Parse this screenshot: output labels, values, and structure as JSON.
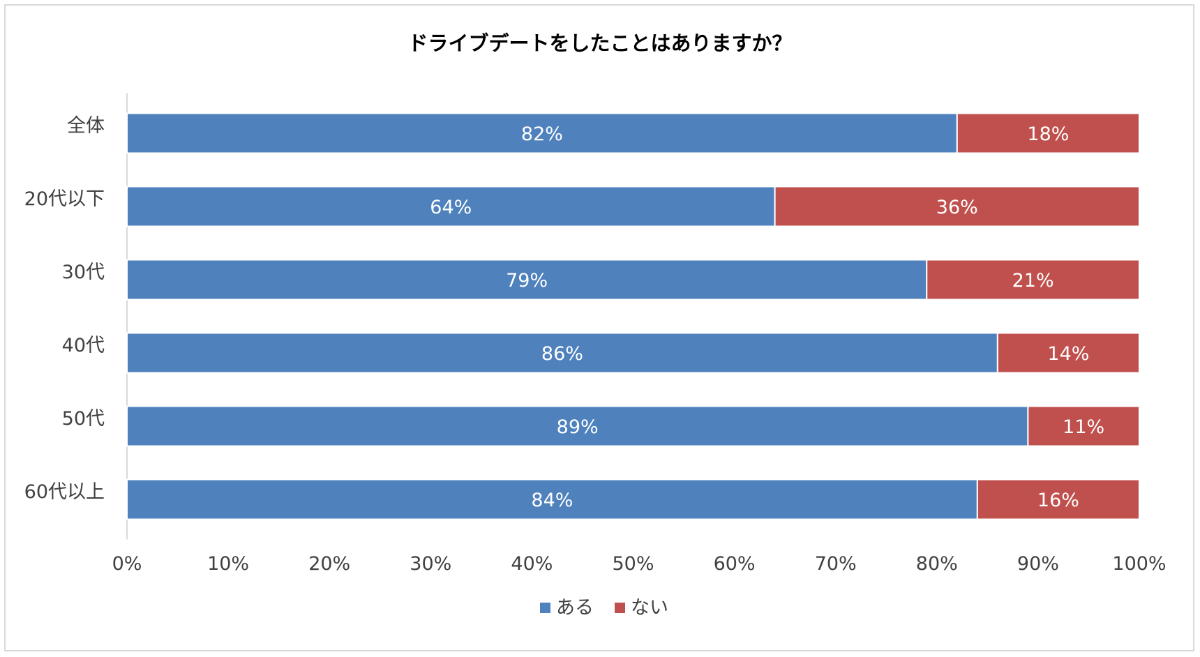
{
  "chart_data": {
    "type": "bar",
    "orientation": "horizontal",
    "stacked": true,
    "title": "ドライブデートをしたことはありますか？",
    "categories": [
      "全体",
      "20代以下",
      "30代",
      "40代",
      "50代",
      "60代以上"
    ],
    "series": [
      {
        "name": "ある",
        "color": "#4f81bd",
        "values": [
          82,
          64,
          79,
          86,
          89,
          84
        ],
        "labels": [
          "82%",
          "64%",
          "79%",
          "86%",
          "89%",
          "84%"
        ]
      },
      {
        "name": "ない",
        "color": "#c0504d",
        "values": [
          18,
          36,
          21,
          14,
          11,
          16
        ],
        "labels": [
          "18%",
          "36%",
          "21%",
          "14%",
          "11%",
          "16%"
        ]
      }
    ],
    "xlim": [
      0,
      100
    ],
    "xticks": [
      "0%",
      "10%",
      "20%",
      "30%",
      "40%",
      "50%",
      "60%",
      "70%",
      "80%",
      "90%",
      "100%"
    ],
    "grid": false,
    "legend": "bottom"
  }
}
